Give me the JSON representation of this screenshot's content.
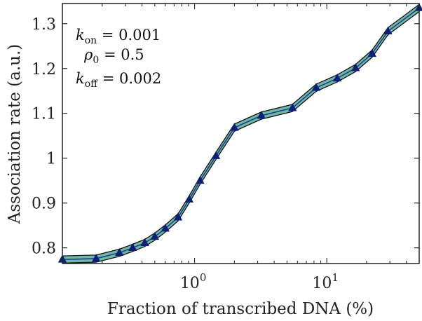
{
  "chart_data": {
    "type": "line",
    "xscale": "log",
    "xlabel": "Fraction of transcribed DNA (%)",
    "ylabel": "Association rate (a.u.)",
    "xlim": [
      0.1,
      50
    ],
    "ylim": [
      0.765,
      1.345
    ],
    "xticks": [
      {
        "value": 1,
        "base": "10",
        "exp": "0"
      },
      {
        "value": 10,
        "base": "10",
        "exp": "1"
      }
    ],
    "yticks": [
      {
        "value": 0.8,
        "label": "0.8"
      },
      {
        "value": 0.9,
        "label": "0.9"
      },
      {
        "value": 1.0,
        "label": "1"
      },
      {
        "value": 1.1,
        "label": "1.1"
      },
      {
        "value": 1.2,
        "label": "1.2"
      },
      {
        "value": 1.3,
        "label": "1.3"
      }
    ],
    "series": [
      {
        "x": [
          0.1,
          0.18,
          0.27,
          0.34,
          0.42,
          0.5,
          0.6,
          0.75,
          0.91,
          1.1,
          1.45,
          2.0,
          3.2,
          5.5,
          8.3,
          12.0,
          16.5,
          22.0,
          29.0,
          50.0
        ],
        "y": [
          0.774,
          0.776,
          0.789,
          0.8,
          0.811,
          0.825,
          0.843,
          0.868,
          0.908,
          0.95,
          1.005,
          1.068,
          1.095,
          1.112,
          1.157,
          1.178,
          1.201,
          1.233,
          1.283,
          1.335
        ],
        "band_halfwidth": 0.008
      }
    ],
    "annotations": [
      {
        "sym": "k",
        "sub": "on",
        "text": " = 0.001"
      },
      {
        "sym": "ρ",
        "sub": "0",
        "text": " = 0.5"
      },
      {
        "sym": "k",
        "sub": "off",
        "text": " = 0.002"
      }
    ],
    "grid": false
  },
  "colors": {
    "band": "#6fb8a6",
    "band_edge": "#111111",
    "line": "#1f3f8f",
    "marker": "#0b1f78"
  }
}
